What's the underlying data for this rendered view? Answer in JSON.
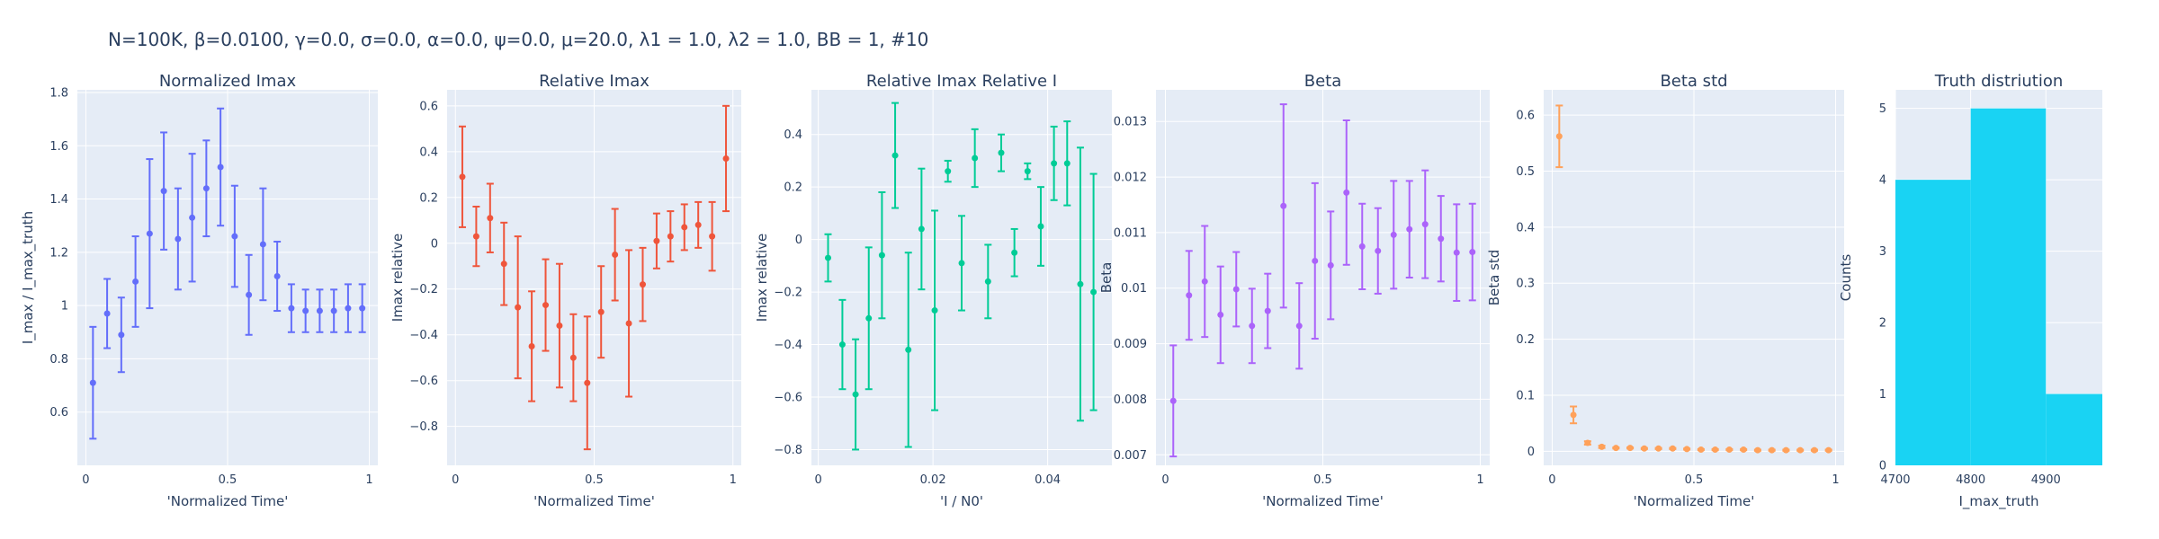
{
  "figure_title": "N=100K, β=0.0100, γ=0.0, σ=0.0,  α=0.0, ψ=0.0, μ=20.0, λ1 = 1.0, λ2 = 1.0, BB = 1, #10",
  "colors": {
    "plot_bg": "#e5ecf6",
    "grid": "#ffffff",
    "text": "#2a3f5f"
  },
  "chart_data": [
    {
      "type": "scatter",
      "title": "Normalized Imax",
      "xlabel": "'Normalized Time'",
      "ylabel": "I_max / I_max_truth",
      "color": "#636efa",
      "xlim": [
        -0.03,
        1.03
      ],
      "ylim": [
        0.4,
        1.81
      ],
      "xticks": [
        0,
        0.5,
        1
      ],
      "xtick_labels": [
        "0",
        "0.5",
        "1"
      ],
      "yticks": [
        0.6,
        0.8,
        1,
        1.2,
        1.4,
        1.6,
        1.8
      ],
      "ytick_labels": [
        "0.6",
        "0.8",
        "1",
        "1.2",
        "1.4",
        "1.6",
        "1.8"
      ],
      "x": [
        0.025,
        0.075,
        0.125,
        0.175,
        0.225,
        0.275,
        0.325,
        0.375,
        0.425,
        0.475,
        0.525,
        0.575,
        0.625,
        0.675,
        0.725,
        0.775,
        0.825,
        0.875,
        0.925,
        0.975
      ],
      "y": [
        0.71,
        0.97,
        0.89,
        1.09,
        1.27,
        1.43,
        1.25,
        1.33,
        1.44,
        1.52,
        1.26,
        1.04,
        1.23,
        1.11,
        0.99,
        0.98,
        0.98,
        0.98,
        0.99,
        0.99
      ],
      "err": [
        0.21,
        0.13,
        0.14,
        0.17,
        0.28,
        0.22,
        0.19,
        0.24,
        0.18,
        0.22,
        0.19,
        0.15,
        0.21,
        0.13,
        0.09,
        0.08,
        0.08,
        0.08,
        0.09,
        0.09
      ]
    },
    {
      "type": "scatter",
      "title": "Relative Imax",
      "xlabel": "'Normalized Time'",
      "ylabel": "Imax relative",
      "color": "#ef553b",
      "xlim": [
        -0.03,
        1.03
      ],
      "ylim": [
        -0.97,
        0.67
      ],
      "xticks": [
        0,
        0.5,
        1
      ],
      "xtick_labels": [
        "0",
        "0.5",
        "1"
      ],
      "yticks": [
        -0.8,
        -0.6,
        -0.4,
        -0.2,
        0,
        0.2,
        0.4,
        0.6
      ],
      "ytick_labels": [
        "−0.8",
        "−0.6",
        "−0.4",
        "−0.2",
        "0",
        "0.2",
        "0.4",
        "0.6"
      ],
      "x": [
        0.025,
        0.075,
        0.125,
        0.175,
        0.225,
        0.275,
        0.325,
        0.375,
        0.425,
        0.475,
        0.525,
        0.575,
        0.625,
        0.675,
        0.725,
        0.775,
        0.825,
        0.875,
        0.925,
        0.975
      ],
      "y": [
        0.29,
        0.03,
        0.11,
        -0.09,
        -0.28,
        -0.45,
        -0.27,
        -0.36,
        -0.5,
        -0.61,
        -0.3,
        -0.05,
        -0.35,
        -0.18,
        0.01,
        0.03,
        0.07,
        0.08,
        0.03,
        0.37
      ],
      "err": [
        0.22,
        0.13,
        0.15,
        0.18,
        0.31,
        0.24,
        0.2,
        0.27,
        0.19,
        0.29,
        0.2,
        0.2,
        0.32,
        0.16,
        0.12,
        0.11,
        0.1,
        0.1,
        0.15,
        0.23
      ]
    },
    {
      "type": "scatter",
      "title": "Relative Imax Relative I",
      "xlabel": "'I / N0'",
      "ylabel": "Imax relative",
      "color": "#00cc96",
      "xlim": [
        -0.0012,
        0.0512
      ],
      "ylim": [
        -0.86,
        0.57
      ],
      "xticks": [
        0,
        0.02,
        0.04
      ],
      "xtick_labels": [
        "0",
        "0.02",
        "0.04"
      ],
      "yticks": [
        -0.8,
        -0.6,
        -0.4,
        -0.2,
        0,
        0.2,
        0.4
      ],
      "ytick_labels": [
        "−0.8",
        "−0.6",
        "−0.4",
        "−0.2",
        "0",
        "0.2",
        "0.4"
      ],
      "x": [
        0.0017,
        0.0042,
        0.0065,
        0.0088,
        0.0111,
        0.0134,
        0.0157,
        0.018,
        0.0203,
        0.0226,
        0.025,
        0.0273,
        0.0296,
        0.0319,
        0.0342,
        0.0365,
        0.0388,
        0.0411,
        0.0434,
        0.0457,
        0.048
      ],
      "y": [
        -0.07,
        -0.4,
        -0.59,
        -0.3,
        -0.06,
        0.32,
        -0.42,
        0.04,
        -0.27,
        0.26,
        -0.09,
        0.31,
        -0.16,
        0.33,
        -0.05,
        0.26,
        0.05,
        0.29,
        0.29,
        -0.17,
        -0.2
      ],
      "err": [
        0.09,
        0.17,
        0.21,
        0.27,
        0.24,
        0.2,
        0.37,
        0.23,
        0.38,
        0.04,
        0.18,
        0.11,
        0.14,
        0.07,
        0.09,
        0.03,
        0.15,
        0.14,
        0.16,
        0.52,
        0.45
      ]
    },
    {
      "type": "scatter",
      "title": "Beta",
      "xlabel": "'Normalized Time'",
      "ylabel": "Beta",
      "color": "#ab63fa",
      "xlim": [
        -0.03,
        1.03
      ],
      "ylim": [
        0.00681,
        0.01357
      ],
      "xticks": [
        0,
        0.5,
        1
      ],
      "xtick_labels": [
        "0",
        "0.5",
        "1"
      ],
      "yticks": [
        0.007,
        0.008,
        0.009,
        0.01,
        0.011,
        0.012,
        0.013
      ],
      "ytick_labels": [
        "0.007",
        "0.008",
        "0.009",
        "0.01",
        "0.011",
        "0.012",
        "0.013"
      ],
      "x": [
        0.025,
        0.075,
        0.125,
        0.175,
        0.225,
        0.275,
        0.325,
        0.375,
        0.425,
        0.475,
        0.525,
        0.575,
        0.625,
        0.675,
        0.725,
        0.775,
        0.825,
        0.875,
        0.925,
        0.975
      ],
      "y": [
        0.00797,
        0.00987,
        0.01012,
        0.00952,
        0.00998,
        0.00932,
        0.00959,
        0.01148,
        0.00932,
        0.01049,
        0.01041,
        0.01172,
        0.01075,
        0.01067,
        0.01096,
        0.01106,
        0.01115,
        0.01089,
        0.01064,
        0.01065
      ],
      "err": [
        0.001,
        0.0008,
        0.001,
        0.00087,
        0.00067,
        0.00067,
        0.00067,
        0.00183,
        0.00077,
        0.0014,
        0.00097,
        0.0013,
        0.00077,
        0.00077,
        0.00097,
        0.00087,
        0.00097,
        0.00077,
        0.00087,
        0.00087
      ]
    },
    {
      "type": "scatter",
      "title": "Beta std",
      "xlabel": "'Normalized Time'",
      "ylabel": "Beta std",
      "color": "#ffa15a",
      "xlim": [
        -0.03,
        1.03
      ],
      "ylim": [
        -0.025,
        0.645
      ],
      "xticks": [
        0,
        0.5,
        1
      ],
      "xtick_labels": [
        "0",
        "0.5",
        "1"
      ],
      "yticks": [
        0,
        0.1,
        0.2,
        0.3,
        0.4,
        0.5,
        0.6
      ],
      "ytick_labels": [
        "0",
        "0.1",
        "0.2",
        "0.3",
        "0.4",
        "0.5",
        "0.6"
      ],
      "x": [
        0.025,
        0.075,
        0.125,
        0.175,
        0.225,
        0.275,
        0.325,
        0.375,
        0.425,
        0.475,
        0.525,
        0.575,
        0.625,
        0.675,
        0.725,
        0.775,
        0.825,
        0.875,
        0.925,
        0.975
      ],
      "y": [
        0.562,
        0.065,
        0.015,
        0.008,
        0.006,
        0.006,
        0.005,
        0.005,
        0.005,
        0.004,
        0.003,
        0.003,
        0.003,
        0.003,
        0.002,
        0.002,
        0.002,
        0.002,
        0.002,
        0.002
      ],
      "err": [
        0.055,
        0.015,
        0.003,
        0.002,
        0.001,
        0.001,
        0.001,
        0.001,
        0.001,
        0.001,
        0.001,
        0.001,
        0.001,
        0.001,
        0.001,
        0.001,
        0.001,
        0.001,
        0.001,
        0.001
      ]
    },
    {
      "type": "bar",
      "title": "Truth distriution",
      "xlabel": "I_max_truth",
      "ylabel": "Counts",
      "color": "#19d3f3",
      "xlim": [
        4700,
        4975
      ],
      "ylim": [
        0,
        5.26
      ],
      "xticks": [
        4700,
        4800,
        4900
      ],
      "xtick_labels": [
        "4700",
        "4800",
        "4900"
      ],
      "yticks": [
        0,
        1,
        2,
        3,
        4,
        5
      ],
      "ytick_labels": [
        "0",
        "1",
        "2",
        "3",
        "4",
        "5"
      ],
      "bins": [
        [
          4700,
          4800
        ],
        [
          4800,
          4900
        ],
        [
          4900,
          5000
        ]
      ],
      "values": [
        4,
        5,
        1
      ]
    }
  ]
}
